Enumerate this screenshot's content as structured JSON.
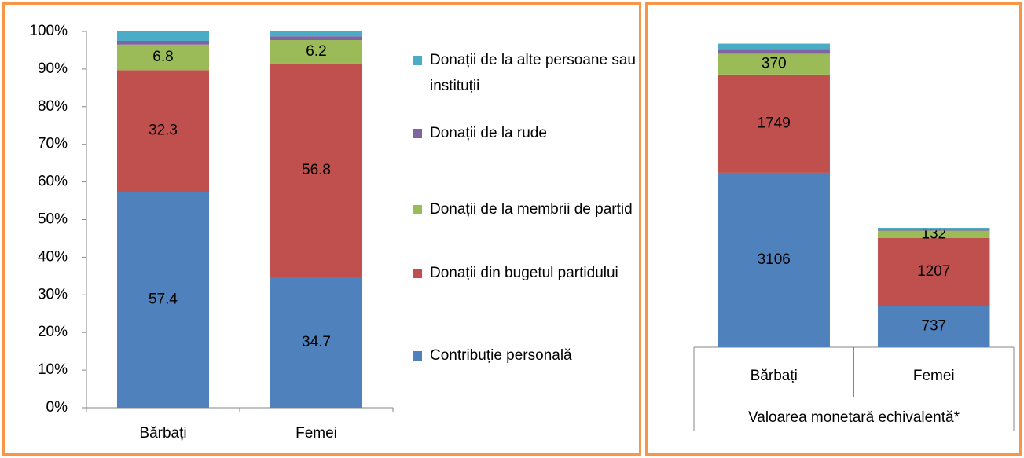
{
  "chart_data": [
    {
      "type": "stacked_bar",
      "categories": [
        "Bărbați",
        "Femei"
      ],
      "series": [
        {
          "name": "Contribuție personală",
          "color": "#4f81bd",
          "values": [
            57.4,
            34.7
          ],
          "data_labels": true
        },
        {
          "name": "Donații din bugetul partidului",
          "color": "#c0504d",
          "values": [
            32.3,
            56.8
          ],
          "data_labels": true
        },
        {
          "name": "Donații de la membrii de partid",
          "color": "#9bbb59",
          "values": [
            6.8,
            6.2
          ],
          "data_labels": true
        },
        {
          "name": "Donații de la rude",
          "color": "#8064a2",
          "values": [
            1.0,
            1.0
          ]
        },
        {
          "name": "Donații de la alte persoane sau instituții",
          "color": "#4bacc6",
          "values": [
            2.5,
            1.3
          ]
        }
      ],
      "ylim": [
        0,
        100
      ],
      "yticks": [
        {
          "value": 0,
          "label": "0%"
        },
        {
          "value": 10,
          "label": "10%"
        },
        {
          "value": 20,
          "label": "20%"
        },
        {
          "value": 30,
          "label": "30%"
        },
        {
          "value": 40,
          "label": "40%"
        },
        {
          "value": 50,
          "label": "50%"
        },
        {
          "value": 60,
          "label": "60%"
        },
        {
          "value": 70,
          "label": "70%"
        },
        {
          "value": 80,
          "label": "80%"
        },
        {
          "value": 90,
          "label": "90%"
        },
        {
          "value": 100,
          "label": "100%"
        }
      ],
      "legend": "right"
    },
    {
      "type": "stacked_bar",
      "categories": [
        "Bărbați",
        "Femei"
      ],
      "x_group_label": "Valoarea monetară echivalentă*",
      "series": [
        {
          "color": "#4f81bd",
          "values": [
            3106,
            737
          ],
          "data_labels": true
        },
        {
          "color": "#c0504d",
          "values": [
            1749,
            1207
          ],
          "data_labels": true
        },
        {
          "color": "#9bbb59",
          "values": [
            370,
            132
          ],
          "data_labels": true
        },
        {
          "color": "#8064a2",
          "values": [
            70,
            20
          ]
        },
        {
          "color": "#4bacc6",
          "values": [
            110,
            30
          ]
        }
      ],
      "ylim": [
        0,
        6000
      ]
    }
  ]
}
